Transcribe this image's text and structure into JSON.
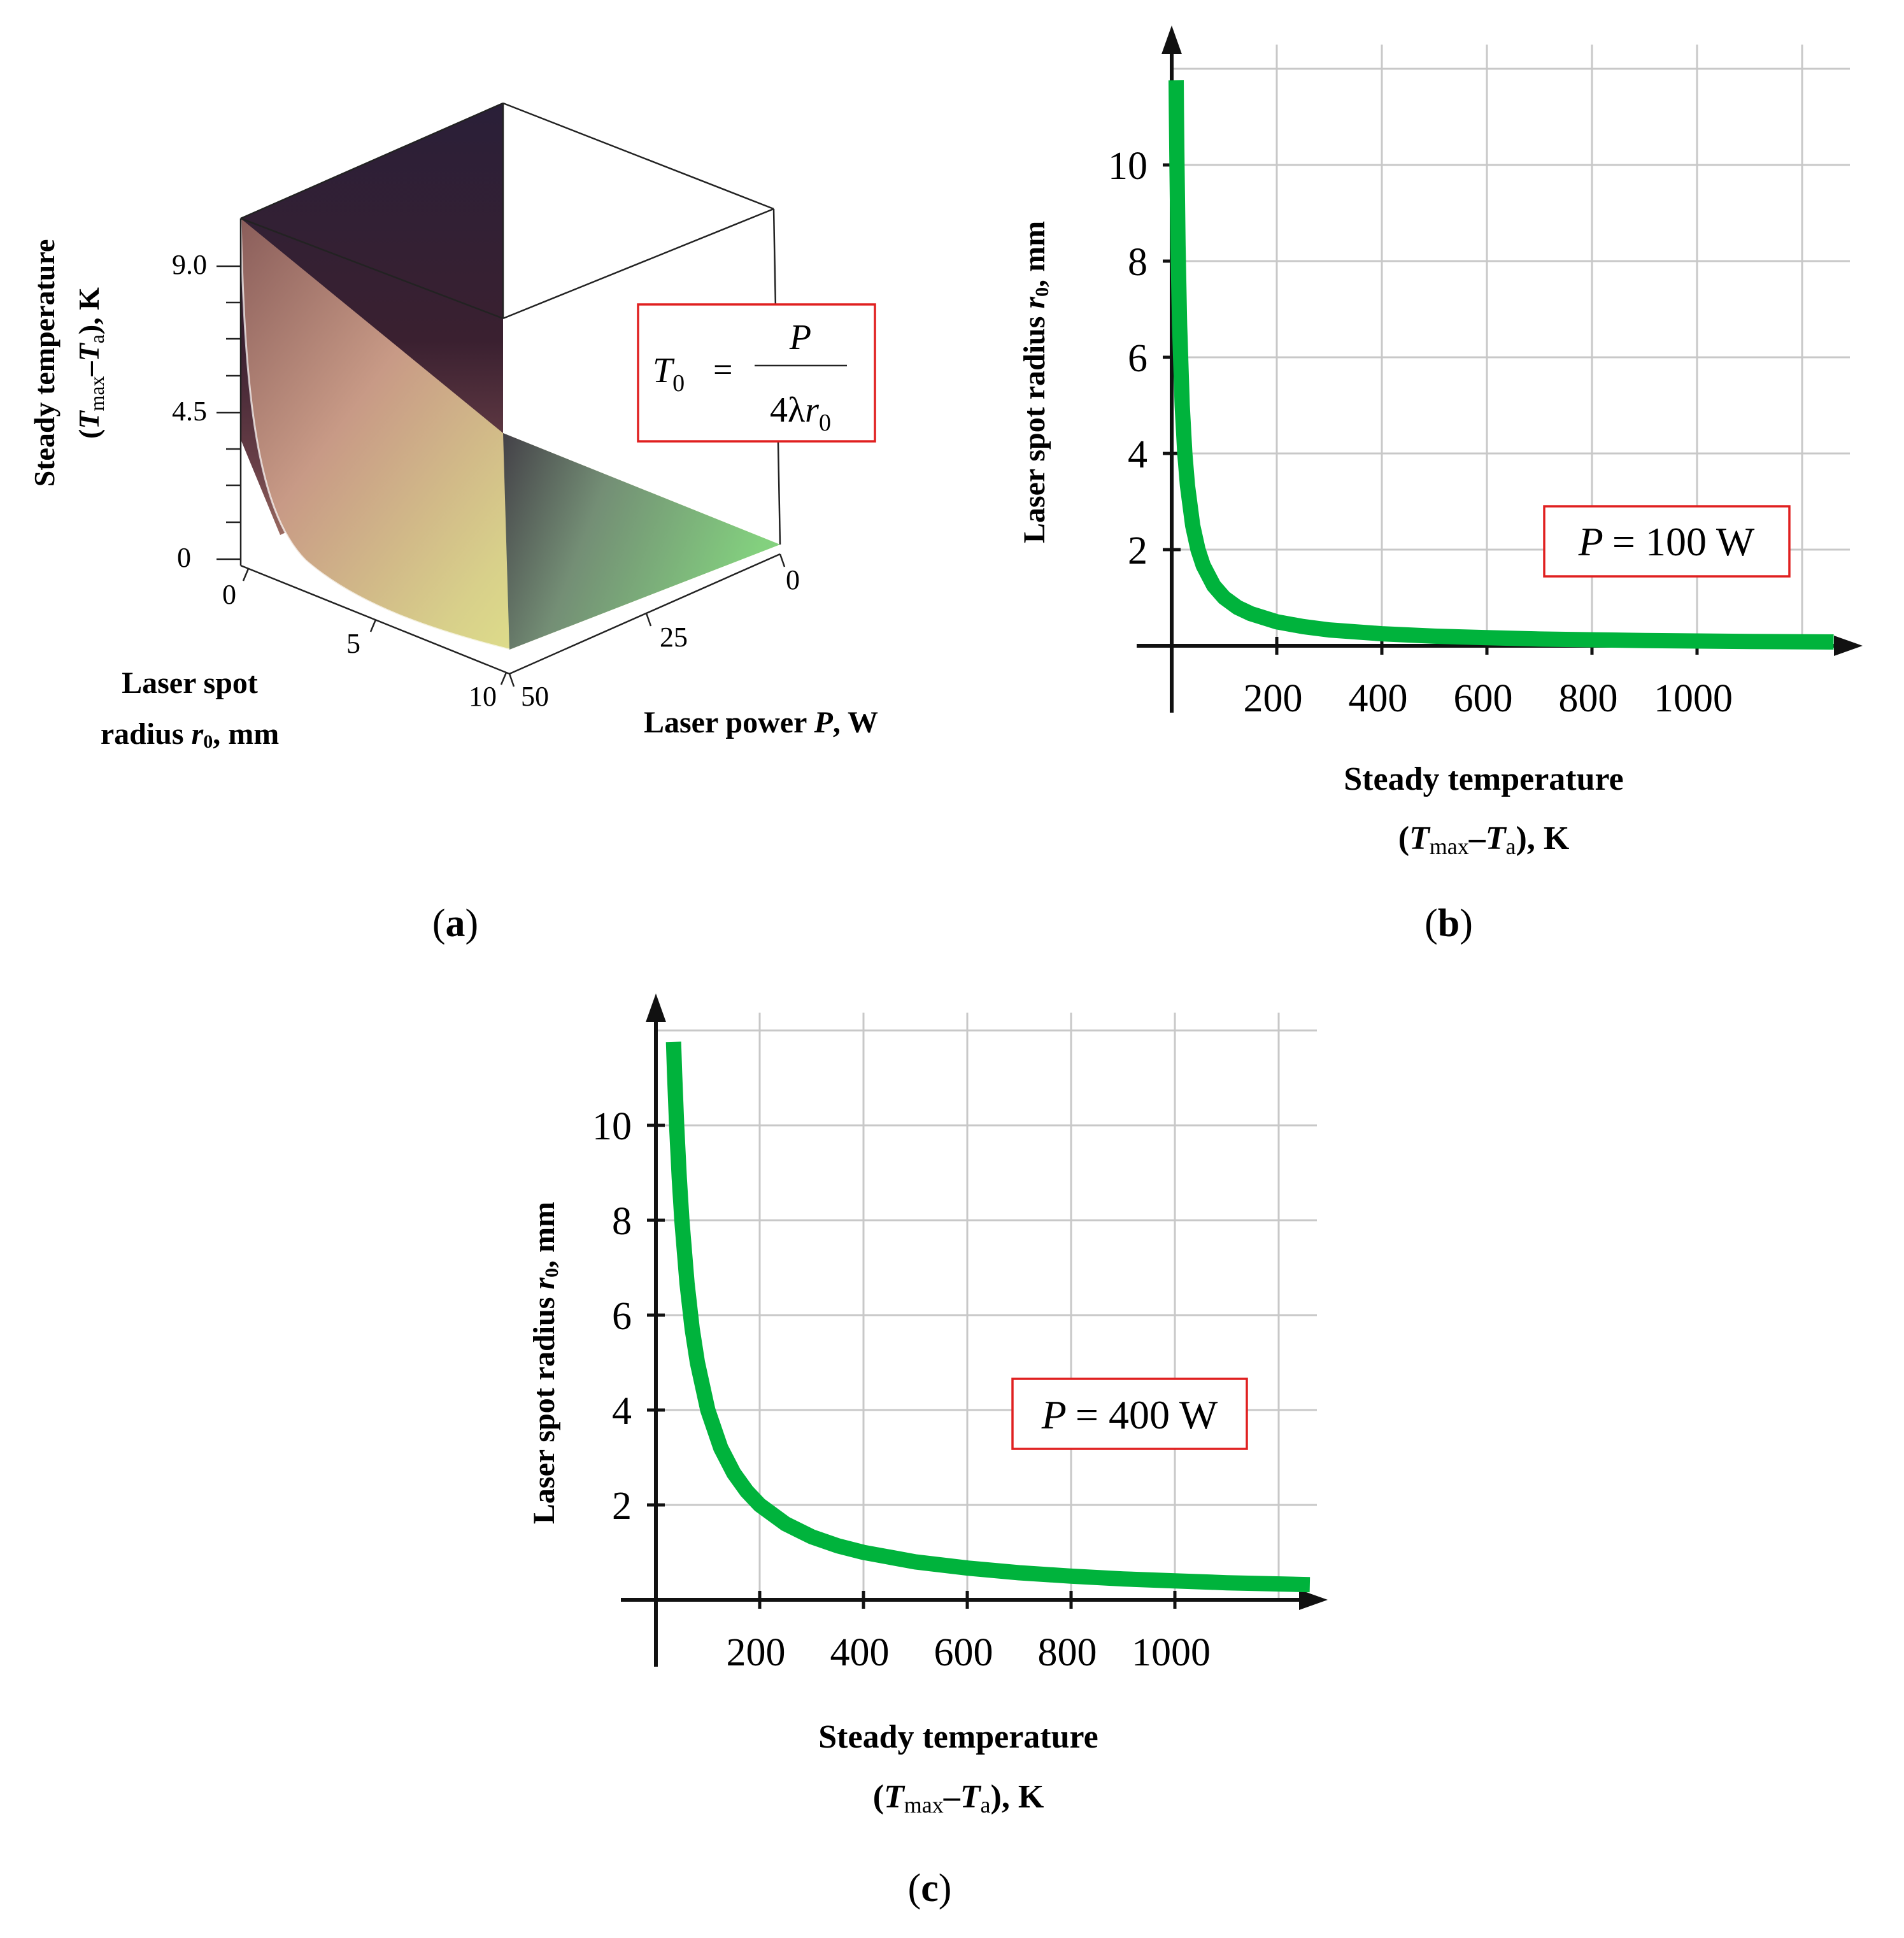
{
  "figure_colors": {
    "curve": "#00b33c",
    "formula_box": "#e02020",
    "grid": "#c8c8c8",
    "axis": "#111111"
  },
  "panel_a": {
    "label_open": "(",
    "label": "a",
    "label_close": ")",
    "z_axis_title_line1": "Steady temperature",
    "z_axis_title_line2_open": "(",
    "z_axis_title_line2_T1": "T",
    "z_axis_title_line2_sub1": "max",
    "z_axis_title_line2_dash": "–",
    "z_axis_title_line2_T2": "T",
    "z_axis_title_line2_sub2": "a",
    "z_axis_title_line2_close": "), K",
    "z_ticks": [
      "9.0",
      "4.5",
      "0"
    ],
    "r_ticks": [
      "0",
      "5",
      "10"
    ],
    "p_ticks": [
      "0",
      "25",
      "50"
    ],
    "r_axis_title_line1": "Laser spot",
    "r_axis_title_line2_prefix": "radius ",
    "r_axis_title_line2_var": "r",
    "r_axis_title_line2_sub": "0",
    "r_axis_title_line2_suffix": ", mm",
    "p_axis_title_prefix": "Laser power ",
    "p_axis_title_var": "P",
    "p_axis_title_suffix": ", W",
    "formula_lhs": "T",
    "formula_lhs_sub": "0",
    "formula_eq": "=",
    "formula_num": "P",
    "formula_den_prefix": "4λ",
    "formula_den_var": "r",
    "formula_den_sub": "0"
  },
  "chart_data": [
    {
      "id": "b",
      "type": "line",
      "label_open": "(",
      "label": "b",
      "label_close": ")",
      "annotation_var": "P",
      "annotation_value": "= 100 W",
      "power_W": 100,
      "xlim": [
        0,
        1260
      ],
      "ylim": [
        0,
        12.4
      ],
      "x_ticks": [
        200,
        400,
        600,
        800,
        1000
      ],
      "y_ticks": [
        2,
        4,
        6,
        8,
        10
      ],
      "x_grid": [
        200,
        400,
        600,
        800,
        1000,
        1200
      ],
      "y_grid": [
        2,
        4,
        6,
        8,
        10,
        12
      ],
      "xlabel_line1": "Steady temperature",
      "xlabel_line2_open": "(",
      "xlabel_line2_T1": "T",
      "xlabel_line2_sub1": "max",
      "xlabel_line2_dash": "–",
      "xlabel_line2_T2": "T",
      "xlabel_line2_sub2": "a",
      "xlabel_line2_close": "), K",
      "ylabel_prefix": "Laser spot  radius ",
      "ylabel_var": "r",
      "ylabel_sub": "0",
      "ylabel_suffix": ", mm",
      "series": [
        {
          "name": "P = 100 W",
          "x": [
            8.5,
            9,
            10,
            12,
            15,
            20,
            25,
            30,
            40,
            50,
            60,
            80,
            100,
            125,
            150,
            200,
            250,
            300,
            400,
            500,
            600,
            700,
            800,
            900,
            1000,
            1100,
            1260
          ],
          "y": [
            11.76,
            11.11,
            10.0,
            8.33,
            6.67,
            5.0,
            4.0,
            3.33,
            2.5,
            2.0,
            1.67,
            1.25,
            1.0,
            0.8,
            0.67,
            0.5,
            0.4,
            0.33,
            0.25,
            0.2,
            0.17,
            0.14,
            0.125,
            0.11,
            0.1,
            0.09,
            0.08
          ]
        }
      ]
    },
    {
      "id": "c",
      "type": "line",
      "label_open": "(",
      "label": "c",
      "label_close": ")",
      "annotation_var": "P",
      "annotation_value": "= 400 W",
      "power_W": 400,
      "xlim": [
        0,
        1260
      ],
      "ylim": [
        0,
        12.4
      ],
      "x_ticks": [
        200,
        400,
        600,
        800,
        1000
      ],
      "y_ticks": [
        2,
        4,
        6,
        8,
        10
      ],
      "x_grid": [
        200,
        400,
        600,
        800,
        1000,
        1200
      ],
      "y_grid": [
        2,
        4,
        6,
        8,
        10,
        12
      ],
      "xlabel_line1": "Steady temperature",
      "xlabel_line2_open": "(",
      "xlabel_line2_T1": "T",
      "xlabel_line2_sub1": "max",
      "xlabel_line2_dash": "–",
      "xlabel_line2_T2": "T",
      "xlabel_line2_sub2": "a",
      "xlabel_line2_close": "), K",
      "ylabel_prefix": "Laser spot  radius ",
      "ylabel_var": "r",
      "ylabel_sub": "0",
      "ylabel_suffix": ", mm",
      "series": [
        {
          "name": "P = 400 W",
          "x": [
            34,
            36,
            40,
            45,
            50,
            60,
            70,
            80,
            100,
            125,
            150,
            175,
            200,
            250,
            300,
            350,
            400,
            500,
            600,
            700,
            800,
            900,
            1000,
            1100,
            1260
          ],
          "y": [
            11.76,
            11.11,
            10.0,
            8.89,
            8.0,
            6.67,
            5.71,
            5.0,
            4.0,
            3.2,
            2.67,
            2.29,
            2.0,
            1.6,
            1.33,
            1.14,
            1.0,
            0.8,
            0.67,
            0.57,
            0.5,
            0.44,
            0.4,
            0.36,
            0.32
          ]
        }
      ]
    }
  ]
}
